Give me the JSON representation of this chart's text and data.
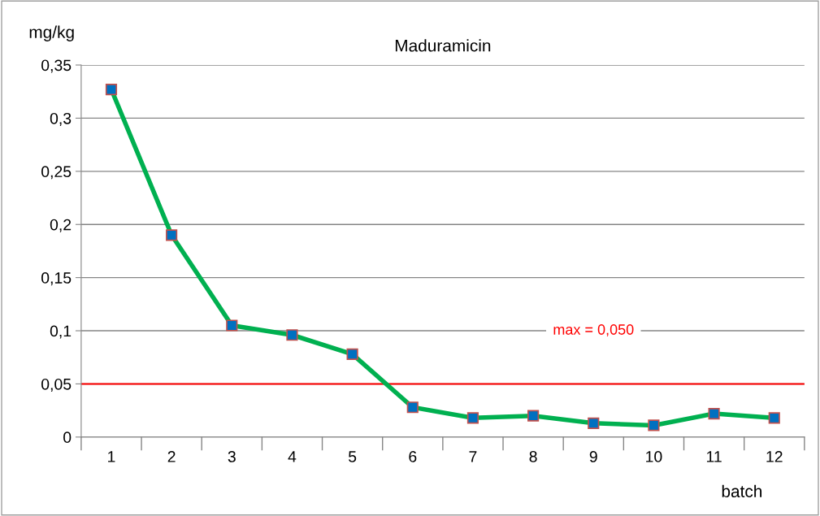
{
  "chart_data": {
    "type": "line",
    "title": "Maduramicin",
    "xlabel": "batch",
    "ylabel": "mg/kg",
    "categories": [
      "1",
      "2",
      "3",
      "4",
      "5",
      "6",
      "7",
      "8",
      "9",
      "10",
      "11",
      "12"
    ],
    "series": [
      {
        "color": "#00b050",
        "values": [
          0.327,
          0.19,
          0.105,
          0.096,
          0.078,
          0.028,
          0.018,
          0.02,
          0.013,
          0.011,
          0.022,
          0.018
        ]
      }
    ],
    "ylim": [
      0,
      0.35
    ],
    "yticks": [
      {
        "value": 0,
        "label": "0"
      },
      {
        "value": 0.05,
        "label": "0,05"
      },
      {
        "value": 0.1,
        "label": "0,1"
      },
      {
        "value": 0.15,
        "label": "0,15"
      },
      {
        "value": 0.2,
        "label": "0,2"
      },
      {
        "value": 0.25,
        "label": "0,25"
      },
      {
        "value": 0.3,
        "label": "0,3"
      },
      {
        "value": 0.35,
        "label": "0,35"
      }
    ],
    "ref_lines": [
      {
        "axis": "y",
        "value": 0.05,
        "label": "max = 0,050",
        "color": "#ff0000"
      }
    ],
    "grid": "y",
    "marker": "square",
    "line_style": "solid",
    "legend": false
  }
}
